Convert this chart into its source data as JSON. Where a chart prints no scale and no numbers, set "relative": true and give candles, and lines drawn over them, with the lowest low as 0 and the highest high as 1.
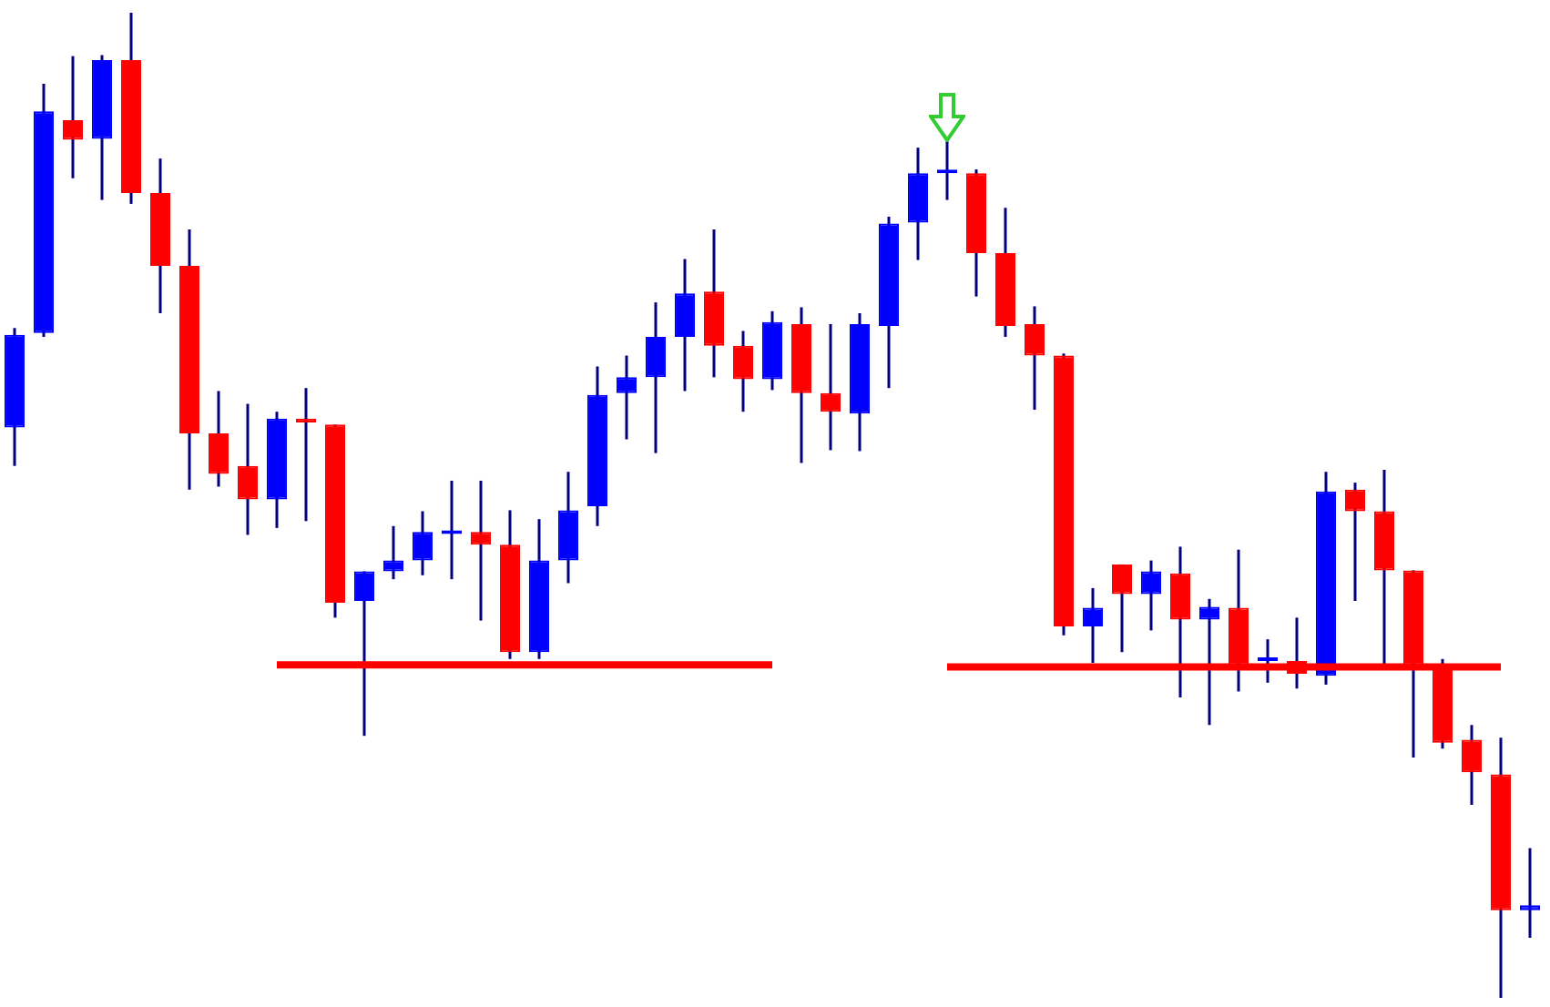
{
  "chart_data": {
    "type": "candlestick",
    "relative": true,
    "categories": [
      null,
      null,
      null,
      null,
      null,
      null,
      null,
      null,
      null,
      null,
      null,
      null,
      null,
      null,
      null,
      null,
      null,
      null,
      null,
      null,
      null,
      null,
      null,
      null,
      null,
      null,
      null,
      null,
      null,
      null,
      null,
      null,
      null,
      null,
      null,
      null,
      null,
      null,
      null,
      null,
      null,
      null,
      null,
      null,
      null,
      null,
      null,
      null,
      null,
      null,
      null,
      null,
      null
    ],
    "ohlc": [
      [
        0.579,
        0.68,
        0.54,
        0.673
      ],
      [
        0.675,
        0.928,
        0.671,
        0.9
      ],
      [
        0.891,
        0.956,
        0.832,
        0.871
      ],
      [
        0.872,
        0.957,
        0.81,
        0.952
      ],
      [
        0.952,
        1,
        0.806,
        0.817
      ],
      [
        0.817,
        0.852,
        0.695,
        0.743
      ],
      [
        0.743,
        0.78,
        0.516,
        0.573
      ],
      [
        0.573,
        0.616,
        0.519,
        0.532
      ],
      [
        0.54,
        0.603,
        0.47,
        0.506
      ],
      [
        0.506,
        0.595,
        0.477,
        0.588
      ],
      [
        0.588,
        0.619,
        0.484,
        0.584
      ],
      [
        0.582,
        0.582,
        0.386,
        0.401
      ],
      [
        0.403,
        0.433,
        0.266,
        0.433
      ],
      [
        0.433,
        0.479,
        0.425,
        0.444
      ],
      [
        0.444,
        0.494,
        0.429,
        0.473
      ],
      [
        0.471,
        0.525,
        0.425,
        0.473
      ],
      [
        0.473,
        0.525,
        0.383,
        0.46
      ],
      [
        0.46,
        0.495,
        0.344,
        0.351
      ],
      [
        0.351,
        0.486,
        0.344,
        0.444
      ],
      [
        0.444,
        0.534,
        0.421,
        0.495
      ],
      [
        0.499,
        0.641,
        0.479,
        0.612
      ],
      [
        0.614,
        0.652,
        0.567,
        0.63
      ],
      [
        0.63,
        0.706,
        0.553,
        0.671
      ],
      [
        0.671,
        0.75,
        0.616,
        0.715
      ],
      [
        0.717,
        0.78,
        0.63,
        0.662
      ],
      [
        0.662,
        0.677,
        0.595,
        0.628
      ],
      [
        0.628,
        0.697,
        0.617,
        0.686
      ],
      [
        0.684,
        0.701,
        0.543,
        0.614
      ],
      [
        0.614,
        0.684,
        0.556,
        0.595
      ],
      [
        0.593,
        0.695,
        0.555,
        0.684
      ],
      [
        0.682,
        0.793,
        0.619,
        0.786
      ],
      [
        0.787,
        0.863,
        0.749,
        0.837
      ],
      [
        0.837,
        0.871,
        0.81,
        0.839
      ],
      [
        0.837,
        0.841,
        0.712,
        0.756
      ],
      [
        0.756,
        0.802,
        0.671,
        0.682
      ],
      [
        0.684,
        0.702,
        0.597,
        0.652
      ],
      [
        0.652,
        0.654,
        0.368,
        0.377
      ],
      [
        0.377,
        0.416,
        0.34,
        0.396
      ],
      [
        0.44,
        0.44,
        0.351,
        0.41
      ],
      [
        0.41,
        0.444,
        0.373,
        0.433
      ],
      [
        0.431,
        0.458,
        0.305,
        0.384
      ],
      [
        0.384,
        0.405,
        0.277,
        0.397
      ],
      [
        0.396,
        0.455,
        0.311,
        0.338
      ],
      [
        0.342,
        0.364,
        0.32,
        0.344
      ],
      [
        0.342,
        0.386,
        0.314,
        0.329
      ],
      [
        0.327,
        0.534,
        0.318,
        0.514
      ],
      [
        0.516,
        0.523,
        0.403,
        0.494
      ],
      [
        0.494,
        0.536,
        0.336,
        0.434
      ],
      [
        0.434,
        0.434,
        0.244,
        0.338
      ],
      [
        0.336,
        0.344,
        0.253,
        0.259
      ],
      [
        0.262,
        0.277,
        0.196,
        0.229
      ],
      [
        0.227,
        0.264,
        0,
        0.089
      ],
      [
        0.089,
        0.152,
        0.061,
        0.094
      ]
    ],
    "colors": [
      "#0000ff",
      "#0000ff",
      "#ff0000",
      "#0000ff",
      "#ff0000",
      "#ff0000",
      "#ff0000",
      "#ff0000",
      "#ff0000",
      "#0000ff",
      "#ff0000",
      "#ff0000",
      "#0000ff",
      "#0000ff",
      "#0000ff",
      "#0000ff",
      "#ff0000",
      "#ff0000",
      "#0000ff",
      "#0000ff",
      "#0000ff",
      "#0000ff",
      "#0000ff",
      "#0000ff",
      "#ff0000",
      "#ff0000",
      "#0000ff",
      "#ff0000",
      "#ff0000",
      "#0000ff",
      "#0000ff",
      "#0000ff",
      "#0000ff",
      "#ff0000",
      "#ff0000",
      "#ff0000",
      "#ff0000",
      "#0000ff",
      "#ff0000",
      "#0000ff",
      "#ff0000",
      "#0000ff",
      "#ff0000",
      "#0000ff",
      "#ff0000",
      "#0000ff",
      "#ff0000",
      "#ff0000",
      "#ff0000",
      "#ff0000",
      "#ff0000",
      "#ff0000",
      "#0000ff"
    ],
    "series": [
      {
        "type": "line",
        "color": "#ff0000",
        "values": [
          null,
          null,
          null,
          null,
          null,
          null,
          null,
          null,
          null,
          0.338,
          0.338,
          0.338,
          0.338,
          0.338,
          0.338,
          0.338,
          0.338,
          0.338,
          0.338,
          0.338,
          0.338,
          0.338,
          0.338,
          0.338,
          0.338,
          0.338,
          0.338,
          null,
          null,
          null,
          null,
          null,
          0.336,
          0.336,
          0.336,
          0.336,
          0.336,
          0.336,
          0.336,
          0.336,
          0.336,
          0.336,
          0.336,
          0.336,
          0.336,
          0.336,
          0.336,
          0.336,
          0.336,
          0.336,
          0.336,
          0.336,
          null
        ]
      }
    ]
  }
}
